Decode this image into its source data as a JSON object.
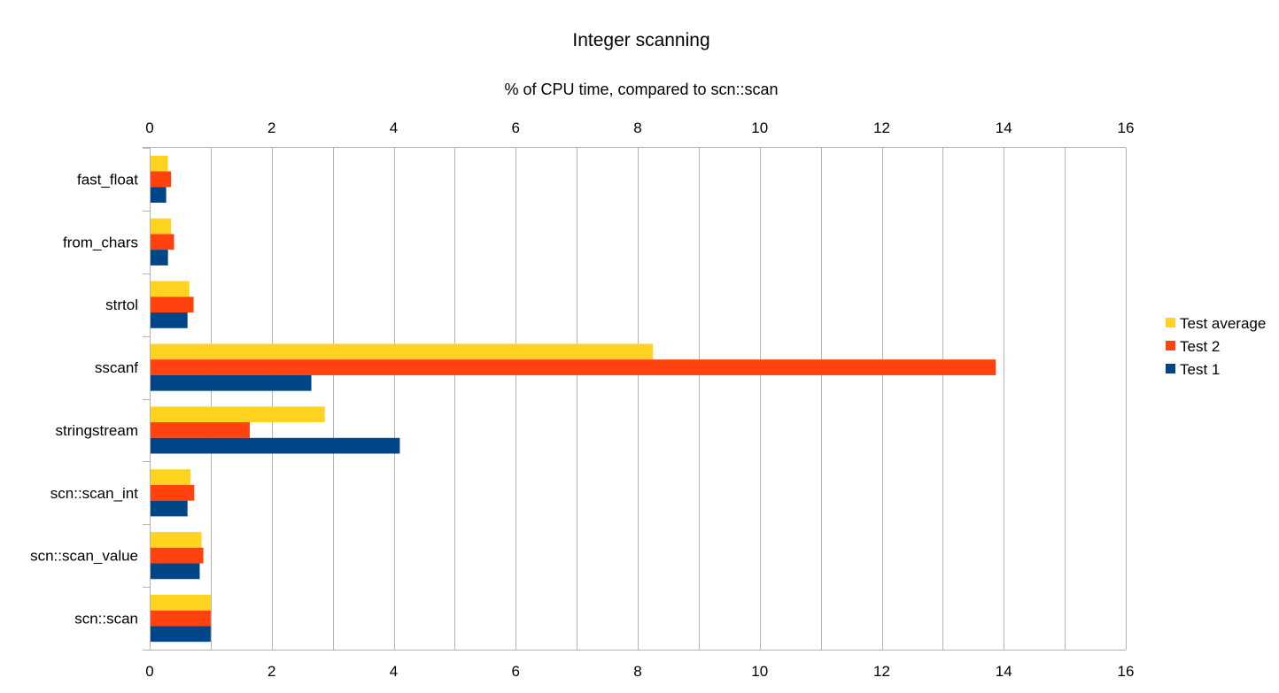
{
  "chart_data": {
    "type": "bar",
    "orientation": "horizontal",
    "title": "Integer scanning",
    "subtitle": "% of CPU time, compared to scn::scan",
    "categories": [
      "fast_float",
      "from_chars",
      "strtol",
      "sscanf",
      "stringstream",
      "scn::scan_int",
      "scn::scan_value",
      "scn::scan"
    ],
    "series": [
      {
        "name": "Test average",
        "color": "#ffd320",
        "values": [
          0.3,
          0.35,
          0.65,
          8.25,
          2.87,
          0.67,
          0.85,
          1.0
        ]
      },
      {
        "name": "Test 2",
        "color": "#ff420e",
        "values": [
          0.35,
          0.4,
          0.72,
          13.87,
          1.64,
          0.73,
          0.88,
          1.0
        ]
      },
      {
        "name": "Test 1",
        "color": "#004586",
        "values": [
          0.27,
          0.3,
          0.62,
          2.65,
          4.1,
          0.62,
          0.82,
          1.0
        ]
      }
    ],
    "xlim": [
      0,
      16
    ],
    "xticks": [
      "0",
      "2",
      "4",
      "6",
      "8",
      "10",
      "12",
      "14",
      "16"
    ],
    "xlabel": "",
    "ylabel": "",
    "grid": true,
    "legend": "right"
  }
}
